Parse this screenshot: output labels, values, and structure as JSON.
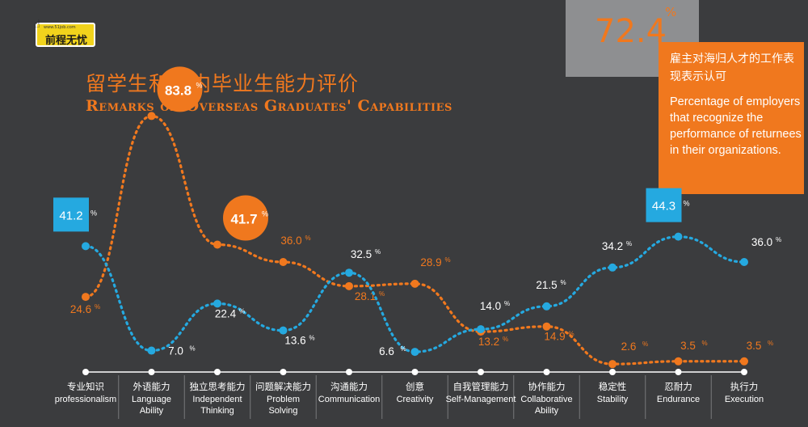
{
  "logo": {
    "text": "前程无忧",
    "url_text": "www.51job.com"
  },
  "title_cn": "留学生和国内毕业生能力评价",
  "title_en": "Remarks on Overseas Graduates' Capabilities",
  "stat": {
    "value": "72.4",
    "unit": "%",
    "text_cn": "雇主对海归人才的工作表现表示认可",
    "text_en": "Percentage of employers that recognize the performance of returnees in their organizations."
  },
  "colors": {
    "overseas": "#f0781e",
    "domestic": "#25a9e0",
    "background": "#3b3c3e",
    "axis": "#ffffff"
  },
  "chart_data": {
    "type": "line",
    "categories": [
      {
        "cn": "专业知识",
        "en": "professionalism"
      },
      {
        "cn": "外语能力",
        "en": "Language Ability"
      },
      {
        "cn": "独立思考能力",
        "en": "Independent Thinking"
      },
      {
        "cn": "问题解决能力",
        "en": "Problem Solving"
      },
      {
        "cn": "沟通能力",
        "en": "Communication"
      },
      {
        "cn": "创意",
        "en": "Creativity"
      },
      {
        "cn": "自我管理能力",
        "en": "Self-Management"
      },
      {
        "cn": "协作能力",
        "en": "Collaborative Ability"
      },
      {
        "cn": "稳定性",
        "en": "Stability"
      },
      {
        "cn": "忍耐力",
        "en": "Endurance"
      },
      {
        "cn": "执行力",
        "en": "Execution"
      }
    ],
    "series": [
      {
        "values": [
          24.6,
          83.8,
          41.7,
          36.0,
          28.1,
          28.9,
          13.2,
          14.9,
          2.6,
          3.5,
          3.5
        ],
        "highlight": [
          1,
          2
        ],
        "color": "#f0781e"
      },
      {
        "values": [
          41.2,
          7.0,
          22.4,
          13.6,
          32.5,
          6.6,
          14.0,
          21.5,
          34.2,
          44.3,
          36.0
        ],
        "highlight": [
          0,
          9
        ],
        "color": "#25a9e0"
      }
    ],
    "value_unit": "%",
    "ylim": [
      0,
      90
    ],
    "grid": false,
    "legend": "none"
  }
}
